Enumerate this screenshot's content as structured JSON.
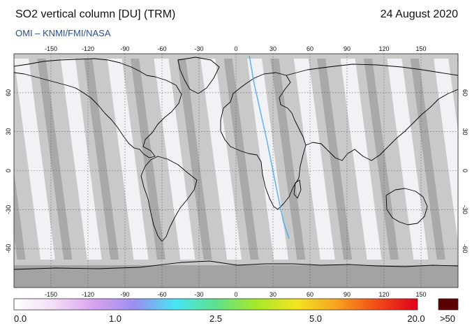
{
  "header": {
    "title": "SO2 vertical column [DU] (TRM)",
    "date": "24 August 2020",
    "credit": "OMI  –  KNMI/FMI/NASA"
  },
  "map": {
    "lon_ticks": [
      "-150",
      "-120",
      "-90",
      "-60",
      "-30",
      "0",
      "30",
      "60",
      "90",
      "120",
      "150"
    ],
    "lat_ticks": [
      "60",
      "30",
      "0",
      "-30",
      "-60"
    ],
    "colors": {
      "ocean_no_data": "#c9c9c9",
      "swath_light": "#f2f1f6",
      "swath_dark": "#a9a9a9",
      "polar_no_data": "#a3a3a3",
      "coastline": "#000000",
      "grid": "#555555"
    }
  },
  "colorbar": {
    "labels": [
      "0.0",
      "1.0",
      "2.5",
      "5.0",
      "20.0",
      ">50"
    ],
    "stops": [
      "#ffffff",
      "#f2dcf6",
      "#d8a2ee",
      "#9b8ef0",
      "#46e6f4",
      "#5fe08c",
      "#a6e82a",
      "#f2e51f",
      "#f6a221",
      "#f14b18",
      "#e0001a"
    ],
    "overflow_color": "#5a0000"
  }
}
